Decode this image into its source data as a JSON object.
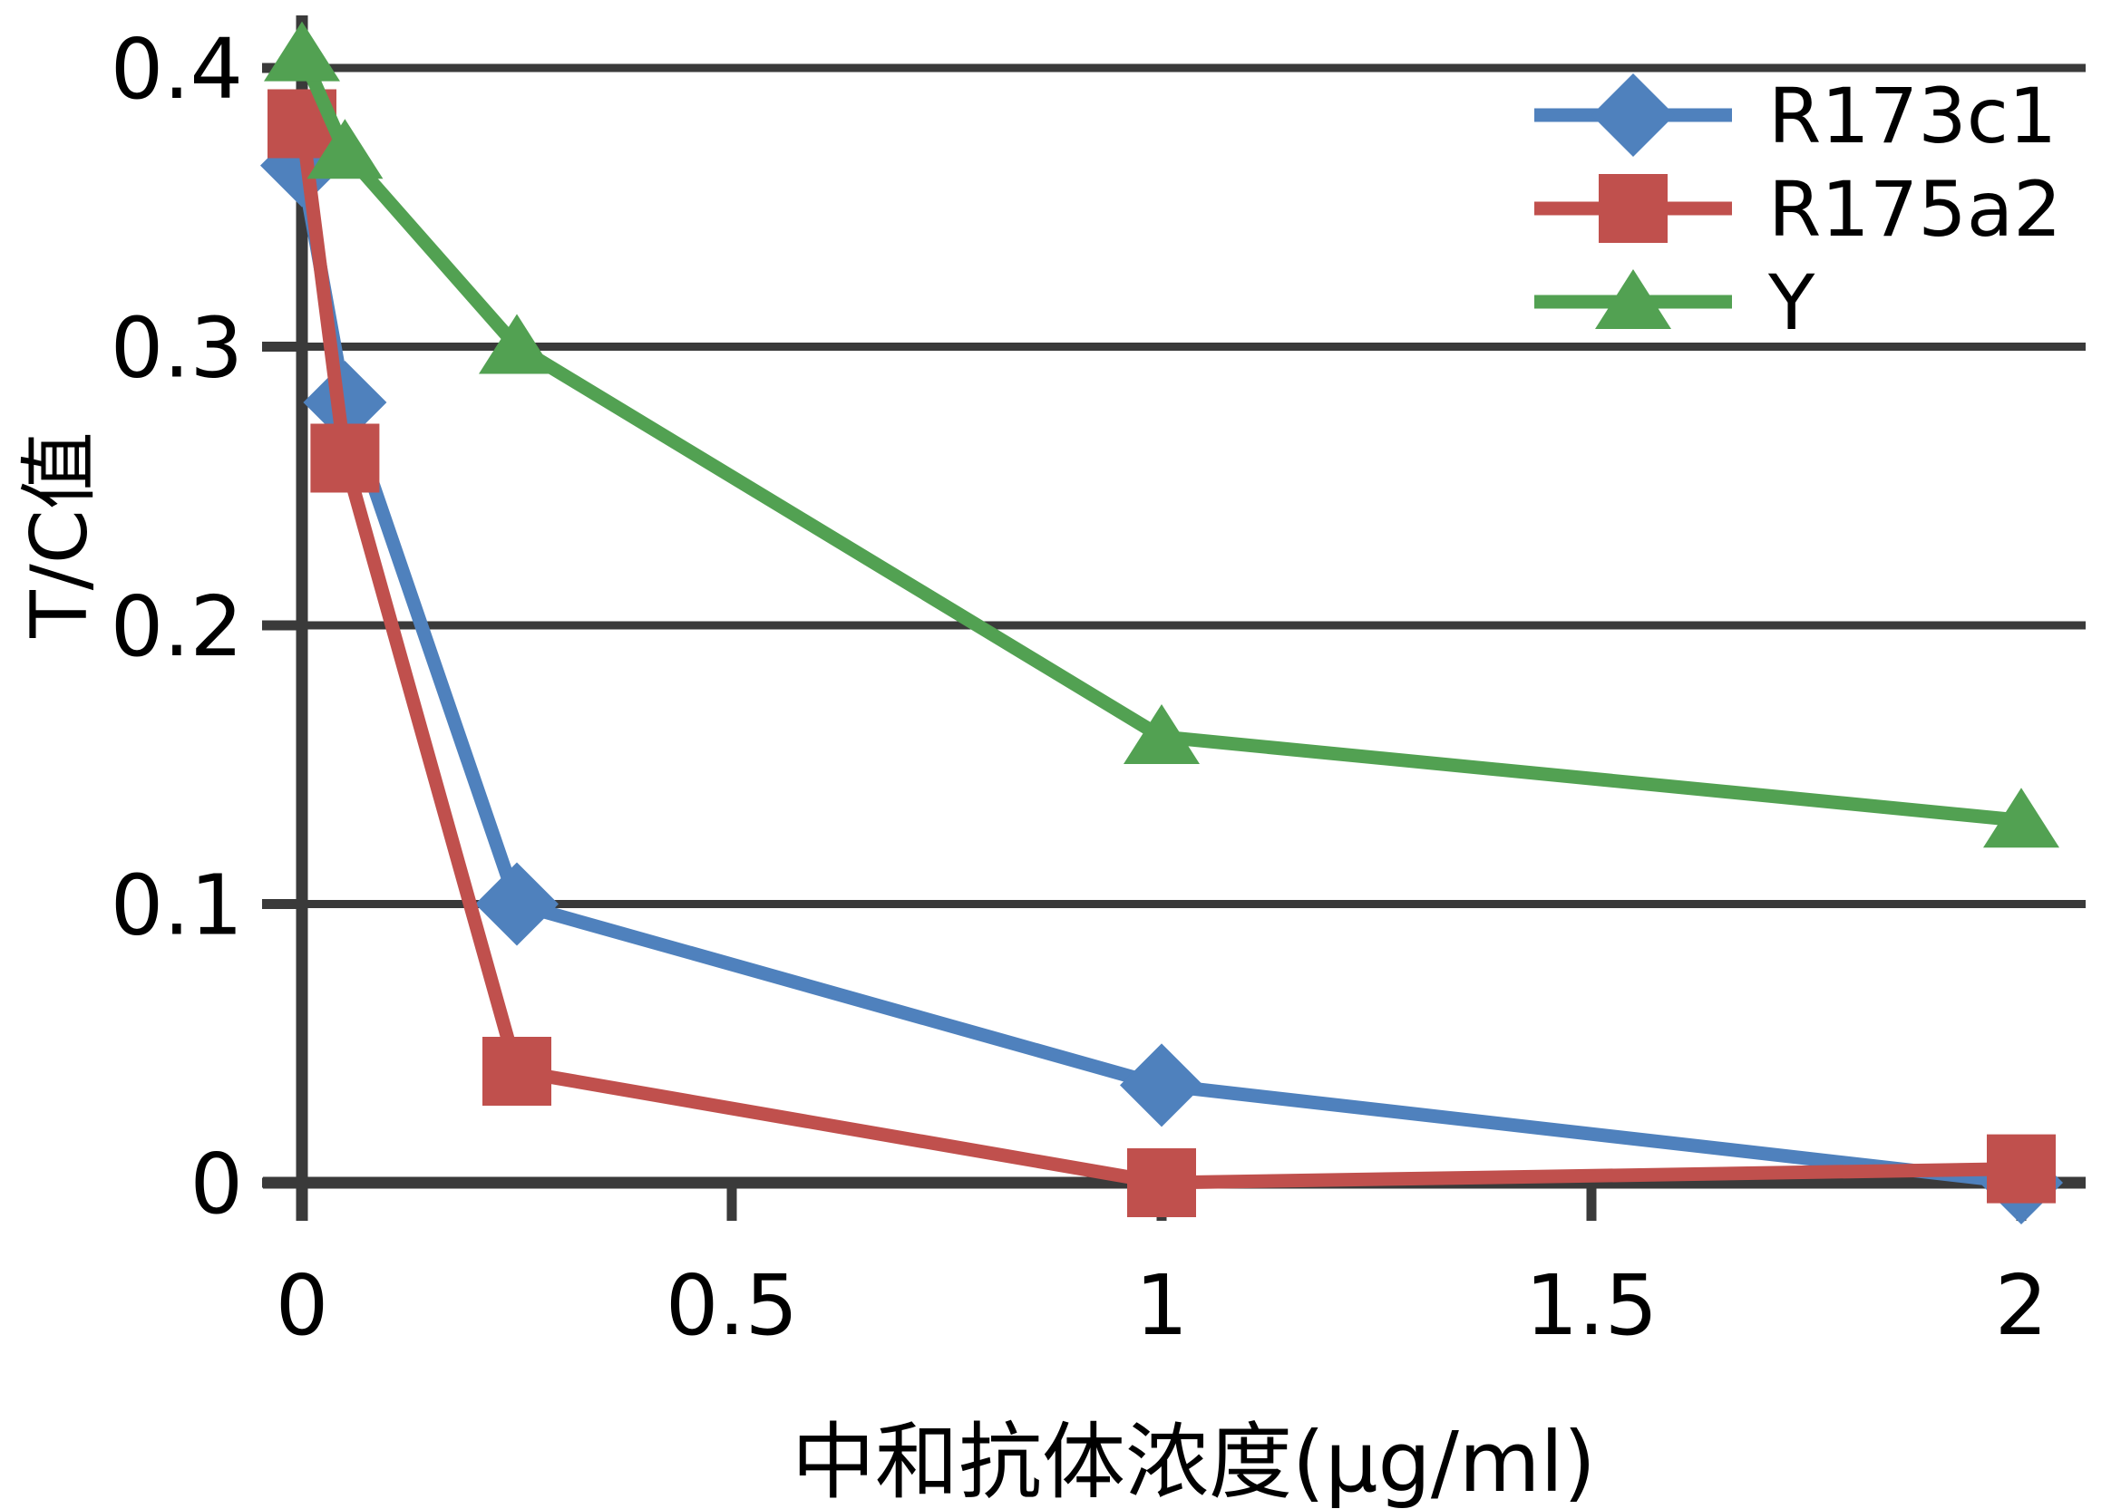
{
  "page": {
    "background": "#ffffff"
  },
  "chart_data": {
    "type": "line",
    "title": "",
    "xlabel": "中和抗体浓度(μg/ml)",
    "ylabel": "T/C值",
    "x": [
      0,
      0.05,
      0.25,
      1,
      2
    ],
    "series": [
      {
        "name": "R173c1",
        "color": "#4F81BD",
        "marker": "diamond",
        "values": [
          0.365,
          0.28,
          0.1,
          0.035,
          0
        ]
      },
      {
        "name": "R175a2",
        "color": "#C0504D",
        "marker": "square",
        "values": [
          0.38,
          0.26,
          0.04,
          0,
          0.005
        ]
      },
      {
        "name": "Y",
        "color": "#52A152",
        "marker": "triangle",
        "values": [
          0.405,
          0.37,
          0.3,
          0.16,
          0.13
        ]
      }
    ],
    "x_ticks": [
      0,
      0.5,
      1,
      1.5,
      2
    ],
    "x_tick_labels": [
      "0",
      "0.5",
      "1",
      "1.5",
      "2"
    ],
    "y_ticks": [
      0,
      0.1,
      0.2,
      0.3,
      0.4
    ],
    "y_tick_labels": [
      "0",
      "0.1",
      "0.2",
      "0.3",
      "0.4"
    ],
    "xlim": [
      0,
      2.07
    ],
    "ylim": [
      0,
      0.42
    ],
    "grid": true,
    "legend_position": "top-right",
    "axis_color": "#3A3A3A",
    "text_color": "#000000"
  }
}
